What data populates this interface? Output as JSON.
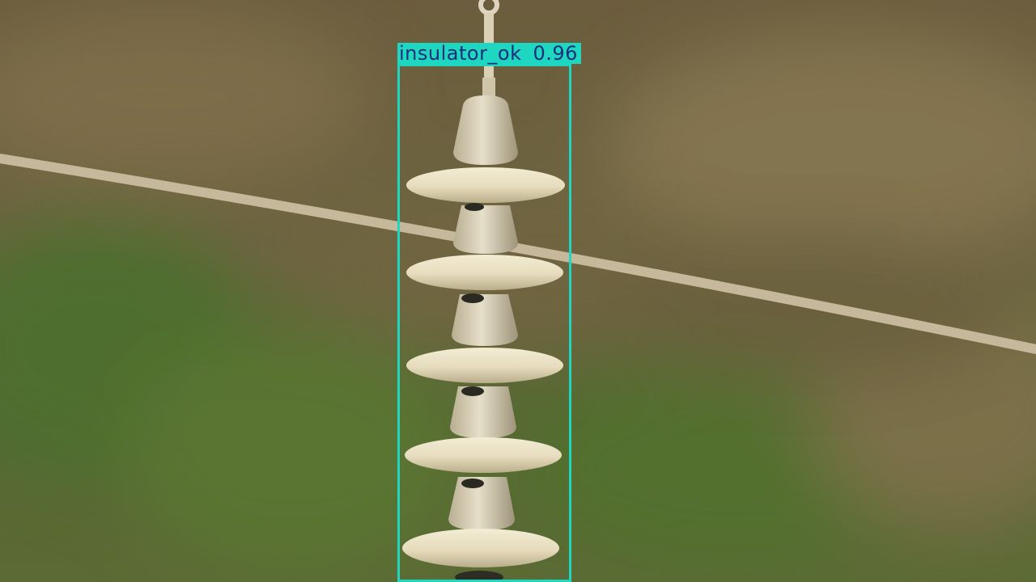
{
  "detection": {
    "label": "insulator_ok",
    "confidence": "0.96",
    "box_color": "#1fd6c0",
    "text_color": "#1b2f7a"
  },
  "scene": {
    "background_colors": [
      "#7a6a45",
      "#5b6e34",
      "#4f6a30",
      "#8a7a55"
    ],
    "insulator_color": "#e9e0c4",
    "wire_color": "#c9bca0"
  }
}
